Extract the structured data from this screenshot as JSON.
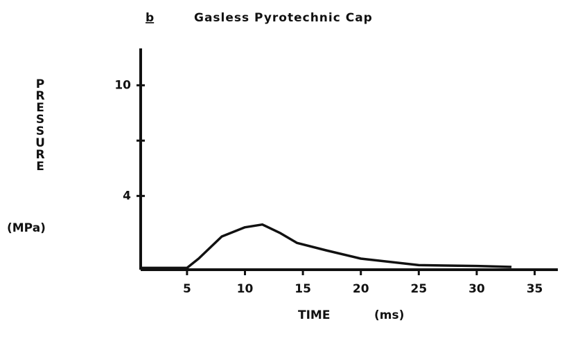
{
  "chart_data": {
    "type": "line",
    "panel_label": "b",
    "title": "Gasless Pyrotechnic Cap",
    "y_label": "PRESSURE",
    "y_unit": "(MPa)",
    "x_label": "TIME",
    "x_unit": "(ms)",
    "x": [
      1,
      5,
      6,
      8,
      10,
      11.5,
      13,
      14.5,
      17,
      20,
      25,
      30,
      33
    ],
    "series": [
      {
        "name": "Pressure",
        "color": "#111111",
        "values": [
          0.1,
          0.1,
          0.6,
          1.8,
          2.3,
          2.45,
          2.0,
          1.45,
          1.05,
          0.6,
          0.25,
          0.2,
          0.15
        ]
      }
    ],
    "xlim": [
      1,
      37
    ],
    "xticks": [
      5,
      10,
      15,
      20,
      25,
      30,
      35
    ],
    "ylim": [
      0,
      12
    ],
    "yticks": [
      4,
      10
    ],
    "yminorticks": [
      7
    ],
    "grid": false
  }
}
